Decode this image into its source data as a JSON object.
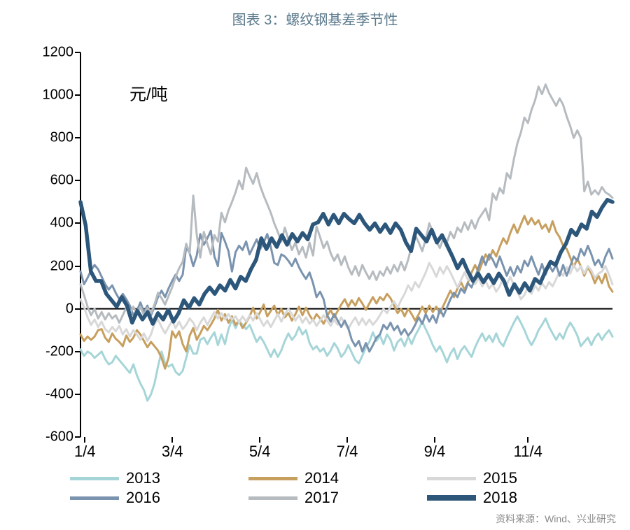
{
  "title": "图表 3：螺纹钢基差季节性",
  "unit": "元/吨",
  "source": "资料来源：Wind、兴业研究",
  "chart": {
    "type": "line",
    "ylim": [
      -600,
      1200
    ],
    "ytick_step": 200,
    "yticks": [
      -600,
      -400,
      -200,
      0,
      200,
      400,
      600,
      800,
      1000,
      1200
    ],
    "xlim": [
      0,
      365
    ],
    "xticks": [
      3,
      63,
      123,
      183,
      243,
      307
    ],
    "xlabels": [
      "1/4",
      "3/4",
      "5/4",
      "7/4",
      "9/4",
      "11/4"
    ],
    "axis_color": "#000000",
    "zero_line_color": "#000000",
    "background_color": "#ffffff",
    "line_width_thin": 3.0,
    "line_width_thick": 5.5,
    "title_fontsize": 20,
    "title_color": "#5b7a8c",
    "label_fontsize": 22,
    "unit_fontsize": 24,
    "series": [
      {
        "name": "2013",
        "color": "#a6d5d8",
        "width": 3.0,
        "y": [
          -190,
          -220,
          -200,
          -210,
          -230,
          -215,
          -200,
          -235,
          -260,
          -250,
          -220,
          -240,
          -260,
          -280,
          -300,
          -260,
          -310,
          -350,
          -380,
          -430,
          -400,
          -350,
          -270,
          -200,
          -255,
          -270,
          -260,
          -295,
          -310,
          -290,
          -230,
          -170,
          -210,
          -210,
          -145,
          -135,
          -165,
          -135,
          -110,
          -170,
          -120,
          -165,
          -95,
          -50,
          -90,
          -55,
          -75,
          -95,
          -75,
          -115,
          -155,
          -130,
          -155,
          -190,
          -225,
          -190,
          -225,
          -195,
          -150,
          -115,
          -145,
          -125,
          -85,
          -120,
          -100,
          -160,
          -190,
          -175,
          -200,
          -185,
          -220,
          -195,
          -160,
          -185,
          -225,
          -205,
          -170,
          -205,
          -240,
          -255,
          -220,
          -180,
          -155,
          -110,
          -150,
          -125,
          -165,
          -120,
          -145,
          -195,
          -155,
          -140,
          -175,
          -130,
          -165,
          -125,
          -95,
          -60,
          -95,
          -130,
          -170,
          -200,
          -175,
          -210,
          -250,
          -210,
          -185,
          -235,
          -195,
          -175,
          -200,
          -225,
          -180,
          -145,
          -115,
          -150,
          -125,
          -155,
          -115,
          -155,
          -175,
          -135,
          -100,
          -65,
          -35,
          -65,
          -100,
          -140,
          -170,
          -140,
          -100,
          -75,
          -45,
          -85,
          -115,
          -145,
          -115,
          -140,
          -95,
          -65,
          -90,
          -125,
          -175,
          -155,
          -135,
          -170,
          -135,
          -115,
          -145,
          -120,
          -100,
          -130
        ]
      },
      {
        "name": "2014",
        "color": "#c79f5e",
        "width": 3.0,
        "y": [
          -120,
          -150,
          -130,
          -145,
          -130,
          -100,
          -95,
          -135,
          -155,
          -115,
          -140,
          -155,
          -175,
          -125,
          -155,
          -135,
          -100,
          -120,
          -150,
          -180,
          -155,
          -175,
          -195,
          -230,
          -280,
          -230,
          -105,
          -135,
          -105,
          -165,
          -200,
          -125,
          -90,
          -145,
          -115,
          -80,
          -100,
          -75,
          -45,
          -5,
          -55,
          -25,
          -65,
          -35,
          -75,
          -55,
          -90,
          -65,
          -35,
          5,
          -45,
          -15,
          20,
          -35,
          -10,
          15,
          -30,
          0,
          -40,
          -20,
          -55,
          -25,
          10,
          -30,
          5,
          -30,
          -55,
          -25,
          -45,
          -70,
          -35,
          -5,
          -40,
          -10,
          20,
          45,
          10,
          40,
          15,
          50,
          25,
          -5,
          25,
          55,
          25,
          55,
          40,
          70,
          50,
          15,
          -20,
          0,
          -35,
          0,
          -25,
          -55,
          -25,
          10,
          -20,
          15,
          -15,
          10,
          -20,
          15,
          50,
          85,
          55,
          95,
          125,
          90,
          125,
          170,
          205,
          170,
          215,
          255,
          230,
          275,
          245,
          290,
          330,
          305,
          355,
          395,
          355,
          395,
          435,
          395,
          425,
          395,
          415,
          375,
          395,
          360,
          410,
          360,
          335,
          295,
          280,
          240,
          195,
          235,
          200,
          155,
          195,
          165,
          120,
          155,
          120,
          165,
          105,
          80
        ]
      },
      {
        "name": "2015",
        "color": "#d8d8d8",
        "width": 3.0,
        "y": [
          45,
          10,
          -40,
          -75,
          -50,
          -85,
          -60,
          -95,
          -110,
          -85,
          -105,
          -80,
          -120,
          -95,
          -130,
          -100,
          -120,
          -145,
          -115,
          -150,
          -120,
          -70,
          -50,
          -85,
          -115,
          -85,
          -55,
          -90,
          -60,
          -95,
          -75,
          -45,
          -65,
          -100,
          -65,
          -40,
          -75,
          -45,
          -15,
          -45,
          -20,
          -50,
          -25,
          -50,
          -35,
          -65,
          -35,
          -60,
          -30,
          -55,
          -20,
          -50,
          -80,
          -55,
          -85,
          -55,
          -25,
          -60,
          -25,
          0,
          -25,
          -55,
          -30,
          -65,
          -40,
          -70,
          -50,
          -80,
          -55,
          -30,
          -55,
          -80,
          -50,
          -75,
          -40,
          -70,
          -95,
          -65,
          -40,
          -75,
          -45,
          -75,
          -50,
          -75,
          -55,
          -30,
          0,
          -20,
          10,
          35,
          5,
          40,
          70,
          110,
          85,
          125,
          100,
          135,
          170,
          215,
          185,
          150,
          195,
          165,
          200,
          170,
          135,
          100,
          135,
          170,
          135,
          155,
          115,
          145,
          105,
          130,
          95,
          115,
          80,
          105,
          145,
          115,
          150,
          110,
          80,
          45,
          65,
          100,
          70,
          110,
          85,
          120,
          95,
          125,
          105,
          140,
          175,
          155,
          195,
          165,
          205,
          175,
          200,
          165,
          200,
          180,
          145,
          165,
          175,
          200,
          160,
          115
        ]
      },
      {
        "name": "2016",
        "color": "#7a93ae",
        "width": 3.0,
        "y": [
          175,
          115,
          145,
          180,
          205,
          185,
          150,
          115,
          90,
          110,
          75,
          45,
          70,
          45,
          15,
          -30,
          -10,
          30,
          -15,
          15,
          -30,
          10,
          55,
          85,
          55,
          95,
          130,
          160,
          130,
          160,
          290,
          260,
          200,
          250,
          350,
          300,
          330,
          365,
          245,
          200,
          355,
          315,
          270,
          175,
          265,
          295,
          275,
          315,
          255,
          290,
          325,
          280,
          310,
          350,
          290,
          215,
          205,
          255,
          245,
          225,
          200,
          235,
          195,
          165,
          140,
          170,
          120,
          55,
          80,
          45,
          -30,
          -60,
          -25,
          -55,
          -85,
          -55,
          -90,
          -145,
          -175,
          -150,
          -200,
          -160,
          -200,
          -170,
          -135,
          -120,
          -75,
          -95,
          -65,
          -100,
          -80,
          -120,
          -95,
          -125,
          -105,
          -75,
          -40,
          -70,
          -25,
          -60,
          -30,
          -65,
          0,
          -35,
          5,
          45,
          75,
          55,
          95,
          75,
          120,
          100,
          145,
          195,
          245,
          205,
          255,
          230,
          195,
          245,
          200,
          155,
          195,
          155,
          200,
          170,
          225,
          200,
          245,
          200,
          160,
          210,
          160,
          205,
          175,
          205,
          155,
          205,
          155,
          200,
          245,
          225,
          280,
          250,
          295,
          255,
          205,
          230,
          195,
          245,
          280,
          235
        ]
      },
      {
        "name": "2017",
        "color": "#b6bbc0",
        "width": 3.0,
        "y": [
          115,
          65,
          10,
          -30,
          0,
          -45,
          -15,
          -50,
          -20,
          -45,
          -30,
          -65,
          -30,
          5,
          -25,
          10,
          -25,
          10,
          -30,
          5,
          -20,
          20,
          75,
          50,
          20,
          60,
          100,
          150,
          190,
          220,
          305,
          260,
          530,
          345,
          240,
          360,
          305,
          255,
          345,
          315,
          450,
          405,
          460,
          500,
          545,
          600,
          560,
          660,
          620,
          585,
          635,
          575,
          530,
          490,
          450,
          400,
          360,
          315,
          380,
          325,
          275,
          310,
          255,
          290,
          240,
          310,
          250,
          385,
          335,
          285,
          315,
          260,
          225,
          255,
          205,
          245,
          195,
          160,
          200,
          155,
          205,
          170,
          140,
          175,
          135,
          175,
          155,
          195,
          165,
          205,
          175,
          220,
          180,
          230,
          295,
          345,
          310,
          270,
          325,
          400,
          360,
          315,
          285,
          330,
          310,
          360,
          330,
          380,
          360,
          405,
          370,
          415,
          375,
          420,
          445,
          470,
          415,
          540,
          510,
          565,
          540,
          635,
          610,
          700,
          775,
          825,
          895,
          870,
          930,
          975,
          1040,
          1005,
          1050,
          1010,
          980,
          950,
          985,
          955,
          900,
          855,
          800,
          835,
          800,
          550,
          595,
          535,
          555,
          535,
          570,
          545,
          535,
          520
        ]
      },
      {
        "name": "2018",
        "color": "#2c567a",
        "width": 5.5,
        "y": [
          500,
          390,
          175,
          130,
          130,
          70,
          40,
          10,
          55,
          15,
          -65,
          -10,
          -50,
          -15,
          -70,
          -20,
          -50,
          -5,
          -60,
          -20,
          40,
          5,
          50,
          20,
          70,
          100,
          70,
          110,
          85,
          135,
          95,
          150,
          130,
          185,
          230,
          330,
          280,
          330,
          290,
          345,
          300,
          350,
          315,
          355,
          325,
          395,
          405,
          445,
          395,
          440,
          400,
          445,
          420,
          400,
          440,
          400,
          370,
          400,
          360,
          395,
          355,
          400,
          370,
          310,
          270,
          375,
          345,
          315,
          370,
          310,
          345,
          295,
          245,
          190,
          230,
          175,
          130,
          165,
          125,
          160,
          120,
          165,
          130,
          65,
          115,
          75,
          120,
          85,
          140,
          120,
          175,
          220,
          205,
          265,
          305,
          370,
          345,
          395,
          375,
          455,
          430,
          475,
          510,
          500
        ]
      }
    ]
  },
  "legend": {
    "items": [
      {
        "label": "2013",
        "color": "#a6d5d8",
        "height": 5
      },
      {
        "label": "2014",
        "color": "#c79f5e",
        "height": 5
      },
      {
        "label": "2015",
        "color": "#d8d8d8",
        "height": 5
      },
      {
        "label": "2016",
        "color": "#7a93ae",
        "height": 5
      },
      {
        "label": "2017",
        "color": "#b6bbc0",
        "height": 5
      },
      {
        "label": "2018",
        "color": "#2c567a",
        "height": 8
      }
    ]
  }
}
